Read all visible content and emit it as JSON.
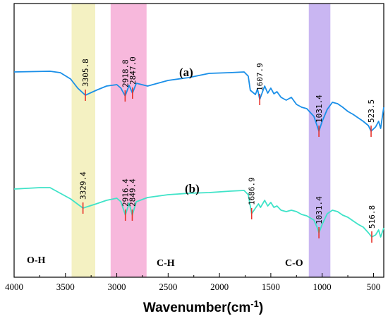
{
  "chart_data": {
    "type": "line",
    "title": "",
    "xlabel": "Wavenumber(cm",
    "xlabel_sup": "-1",
    "xlabel_end": ")",
    "ylabel": "",
    "xlim": [
      4000,
      400
    ],
    "x_reversed": true,
    "y_ticks_shown": false,
    "grid": false,
    "x_ticks": [
      "4000",
      "3500",
      "3000",
      "2500",
      "2000",
      "1500",
      "1000",
      "500"
    ],
    "bands": [
      {
        "label": "O-H",
        "x_from": 3440,
        "x_to": 3210,
        "color": "#f4f1c2"
      },
      {
        "label": "C-H",
        "x_from": 3060,
        "x_to": 2710,
        "color": "#f7b8dc"
      },
      {
        "label": "C-O",
        "x_from": 1130,
        "x_to": 920,
        "color": "#c9b6f2"
      }
    ],
    "series": [
      {
        "name": "(a)",
        "color": "#1a8fe8",
        "points": [
          [
            4000,
            102
          ],
          [
            3650,
            101
          ],
          [
            3550,
            103
          ],
          [
            3450,
            112
          ],
          [
            3380,
            125
          ],
          [
            3305.8,
            135
          ],
          [
            3200,
            128
          ],
          [
            3100,
            122
          ],
          [
            3000,
            120
          ],
          [
            2960,
            125
          ],
          [
            2918.8,
            136
          ],
          [
            2880,
            121
          ],
          [
            2847,
            132
          ],
          [
            2810,
            118
          ],
          [
            2700,
            122
          ],
          [
            2500,
            114
          ],
          [
            2300,
            110
          ],
          [
            2100,
            104
          ],
          [
            1900,
            103
          ],
          [
            1760,
            102
          ],
          [
            1720,
            108
          ],
          [
            1700,
            128
          ],
          [
            1650,
            134
          ],
          [
            1630,
            126
          ],
          [
            1607.9,
            141
          ],
          [
            1580,
            130
          ],
          [
            1560,
            122
          ],
          [
            1530,
            132
          ],
          [
            1500,
            125
          ],
          [
            1470,
            133
          ],
          [
            1440,
            130
          ],
          [
            1400,
            138
          ],
          [
            1350,
            142
          ],
          [
            1300,
            138
          ],
          [
            1250,
            148
          ],
          [
            1200,
            152
          ],
          [
            1150,
            154
          ],
          [
            1080,
            165
          ],
          [
            1050,
            178
          ],
          [
            1031.4,
            186
          ],
          [
            1000,
            172
          ],
          [
            950,
            155
          ],
          [
            900,
            145
          ],
          [
            850,
            147
          ],
          [
            800,
            152
          ],
          [
            750,
            158
          ],
          [
            700,
            162
          ],
          [
            650,
            167
          ],
          [
            600,
            172
          ],
          [
            550,
            178
          ],
          [
            523.5,
            186
          ],
          [
            480,
            180
          ],
          [
            450,
            172
          ],
          [
            430,
            182
          ],
          [
            400,
            152
          ]
        ]
      },
      {
        "name": "(b)",
        "color": "#3fe3c8",
        "points": [
          [
            4000,
            268
          ],
          [
            3750,
            266
          ],
          [
            3650,
            266
          ],
          [
            3550,
            274
          ],
          [
            3450,
            282
          ],
          [
            3329.4,
            295
          ],
          [
            3200,
            289
          ],
          [
            3100,
            284
          ],
          [
            3000,
            281
          ],
          [
            2960,
            286
          ],
          [
            2916.4,
            305
          ],
          [
            2880,
            288
          ],
          [
            2849.4,
            305
          ],
          [
            2810,
            286
          ],
          [
            2700,
            280
          ],
          [
            2500,
            276
          ],
          [
            2300,
            274
          ],
          [
            2100,
            273
          ],
          [
            1900,
            271
          ],
          [
            1760,
            270
          ],
          [
            1720,
            276
          ],
          [
            1700,
            292
          ],
          [
            1686.9,
            303
          ],
          [
            1650,
            295
          ],
          [
            1620,
            289
          ],
          [
            1600,
            294
          ],
          [
            1560,
            284
          ],
          [
            1530,
            292
          ],
          [
            1500,
            287
          ],
          [
            1470,
            294
          ],
          [
            1440,
            292
          ],
          [
            1400,
            298
          ],
          [
            1350,
            300
          ],
          [
            1300,
            298
          ],
          [
            1250,
            300
          ],
          [
            1200,
            304
          ],
          [
            1150,
            306
          ],
          [
            1080,
            312
          ],
          [
            1050,
            322
          ],
          [
            1031.4,
            330
          ],
          [
            1000,
            318
          ],
          [
            950,
            303
          ],
          [
            900,
            298
          ],
          [
            850,
            300
          ],
          [
            800,
            305
          ],
          [
            750,
            308
          ],
          [
            700,
            313
          ],
          [
            650,
            318
          ],
          [
            600,
            322
          ],
          [
            550,
            330
          ],
          [
            516.8,
            336
          ],
          [
            480,
            333
          ],
          [
            450,
            326
          ],
          [
            430,
            336
          ],
          [
            400,
            323
          ]
        ]
      }
    ],
    "peaks": [
      {
        "series": 0,
        "x": 3305.8,
        "label": "3305.8"
      },
      {
        "series": 0,
        "x": 2918.8,
        "label": "2918.8"
      },
      {
        "series": 0,
        "x": 2847.0,
        "label": "2847.0"
      },
      {
        "series": 0,
        "x": 1607.9,
        "label": "1607.9"
      },
      {
        "series": 0,
        "x": 1031.4,
        "label": "1031.4"
      },
      {
        "series": 0,
        "x": 523.5,
        "label": "523.5"
      },
      {
        "series": 1,
        "x": 3329.4,
        "label": "3329.4"
      },
      {
        "series": 1,
        "x": 2916.4,
        "label": "2916.4"
      },
      {
        "series": 1,
        "x": 2849.4,
        "label": "2849.4"
      },
      {
        "series": 1,
        "x": 1686.9,
        "label": "1686.9"
      },
      {
        "series": 1,
        "x": 1031.4,
        "label": "1031.4"
      },
      {
        "series": 1,
        "x": 516.8,
        "label": "516.8"
      }
    ],
    "peak_marker_color": "#e8322a"
  }
}
